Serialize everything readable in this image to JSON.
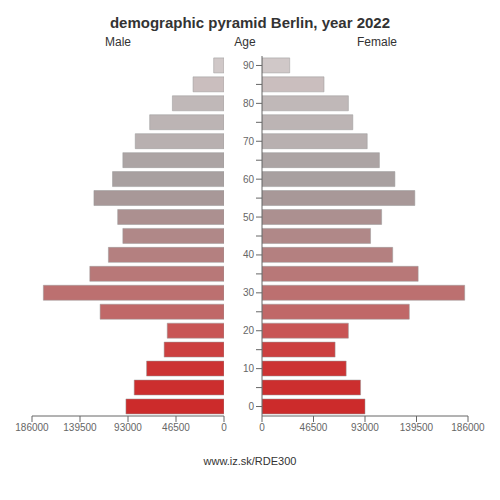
{
  "chart_data": {
    "type": "bar",
    "orientation": "horizontal",
    "title": "demographic pyramid Berlin, year 2022",
    "ylabel": "Age",
    "annotations": [
      "www.iz.sk/RDE300"
    ],
    "categories": [
      "0",
      null,
      "10",
      null,
      "20",
      null,
      "30",
      null,
      "40",
      null,
      "50",
      null,
      "60",
      null,
      "70",
      null,
      "80",
      null,
      "90"
    ],
    "series": [
      {
        "name": "Male",
        "values": [
          95000,
          87000,
          75000,
          58000,
          55000,
          120000,
          175000,
          130000,
          112000,
          98000,
          103000,
          126000,
          108000,
          98000,
          86000,
          72000,
          50000,
          30000,
          10000
        ]
      },
      {
        "name": "Female",
        "values": [
          93000,
          89000,
          76000,
          66000,
          78000,
          133000,
          183000,
          141000,
          118000,
          98000,
          108000,
          138000,
          120000,
          106000,
          95000,
          82000,
          78000,
          56000,
          25000
        ]
      }
    ],
    "colors": [
      "#cc2b2b",
      "#cc2e2e",
      "#cc3333",
      "#cc4040",
      "#c85555",
      "#c06868",
      "#bc7070",
      "#b87878",
      "#b48080",
      "#b08888",
      "#ac9090",
      "#a89898",
      "#a8a0a0",
      "#aca4a4",
      "#b8b0b0",
      "#bcb4b4",
      "#c0b8b8",
      "#cabebe",
      "#d0c8c8"
    ],
    "xlim": [
      0,
      186000
    ],
    "xticks": [
      0,
      46500,
      93000,
      139500,
      186000
    ]
  }
}
